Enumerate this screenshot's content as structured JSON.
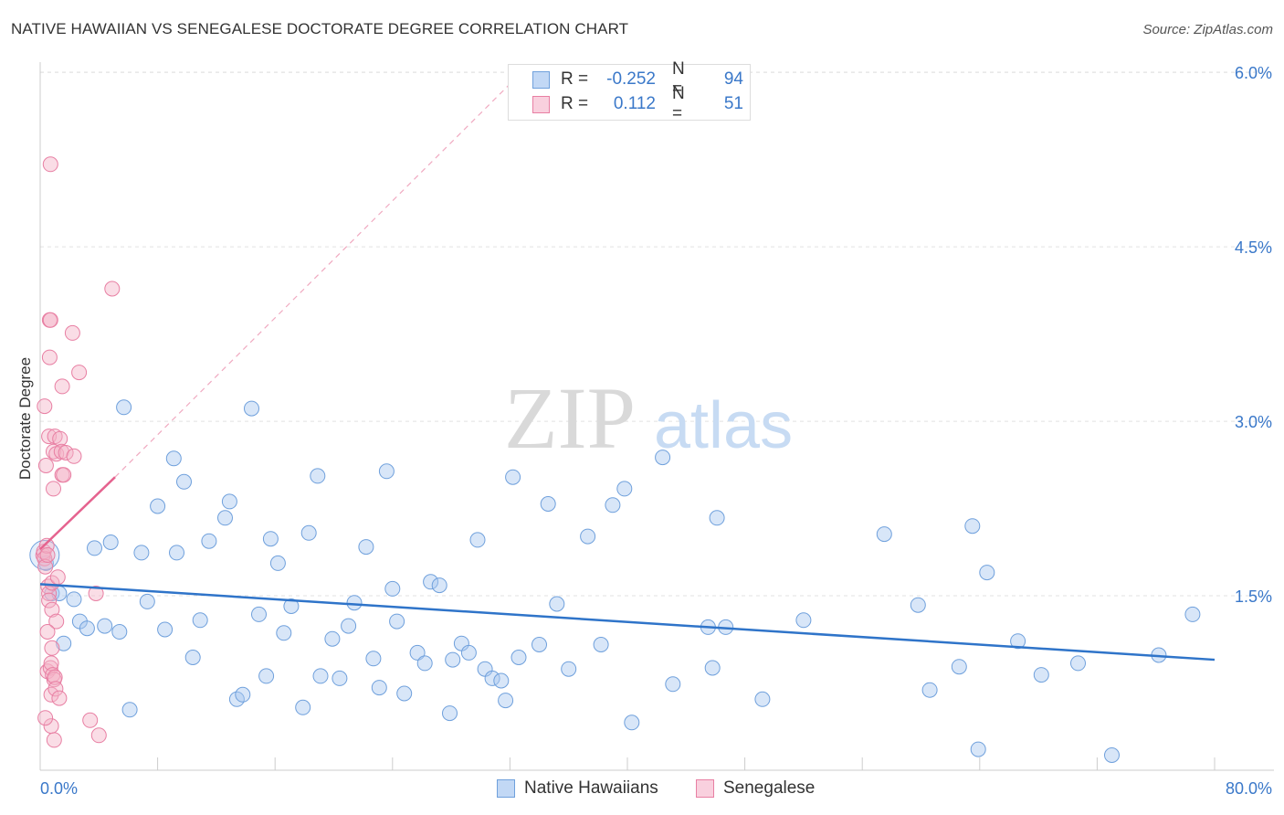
{
  "header": {
    "title": "NATIVE HAWAIIAN VS SENEGALESE DOCTORATE DEGREE CORRELATION CHART",
    "source": "Source: ZipAtlas.com"
  },
  "watermark": {
    "zip": "ZIP",
    "atlas": "atlas"
  },
  "legend": {
    "rows": [
      {
        "r_label": "R =",
        "r_value": "-0.252",
        "n_label": "N =",
        "n_value": "94",
        "color": "#a8c8f0"
      },
      {
        "r_label": "R =",
        "r_value": "0.112",
        "n_label": "N =",
        "n_value": "51",
        "color": "#f5b3c8"
      }
    ]
  },
  "bottom_legend": {
    "items": [
      {
        "label": "Native Hawaiians",
        "color": "#a8c8f0"
      },
      {
        "label": "Senegalese",
        "color": "#f5b3c8"
      }
    ]
  },
  "chart_data": {
    "type": "scatter",
    "title": "NATIVE HAWAIIAN VS SENEGALESE DOCTORATE DEGREE CORRELATION CHART",
    "xlabel": "",
    "ylabel": "Doctorate Degree",
    "xlim": [
      0,
      80
    ],
    "ylim": [
      0,
      6.3
    ],
    "x_tick_labels": [
      "0.0%",
      "80.0%"
    ],
    "y_ticks": [
      1.5,
      3.0,
      4.5,
      6.0
    ],
    "y_tick_labels": [
      "1.5%",
      "3.0%",
      "4.5%",
      "6.0%"
    ],
    "grid": true,
    "series": [
      {
        "name": "Native Hawaiians",
        "color": "#a8c8f0",
        "stroke": "#6fa0dc",
        "trend": {
          "x": [
            0,
            80
          ],
          "y": [
            1.6,
            0.95
          ],
          "color": "#2f74c9"
        },
        "points": [
          [
            0.4,
            1.78
          ],
          [
            0.8,
            1.52
          ],
          [
            1.3,
            1.52
          ],
          [
            1.6,
            1.09
          ],
          [
            2.3,
            1.47
          ],
          [
            2.7,
            1.28
          ],
          [
            3.2,
            1.22
          ],
          [
            3.7,
            1.91
          ],
          [
            4.4,
            1.24
          ],
          [
            4.8,
            1.96
          ],
          [
            5.4,
            1.19
          ],
          [
            5.7,
            3.12
          ],
          [
            6.1,
            0.52
          ],
          [
            6.9,
            1.87
          ],
          [
            7.3,
            1.45
          ],
          [
            8.0,
            2.27
          ],
          [
            8.5,
            1.21
          ],
          [
            9.1,
            2.68
          ],
          [
            9.3,
            1.87
          ],
          [
            9.8,
            2.48
          ],
          [
            10.4,
            0.97
          ],
          [
            10.9,
            1.29
          ],
          [
            11.5,
            1.97
          ],
          [
            12.6,
            2.17
          ],
          [
            12.9,
            2.31
          ],
          [
            13.4,
            0.61
          ],
          [
            13.8,
            0.65
          ],
          [
            14.4,
            3.11
          ],
          [
            14.9,
            1.34
          ],
          [
            15.4,
            0.81
          ],
          [
            15.7,
            1.99
          ],
          [
            16.2,
            1.78
          ],
          [
            16.6,
            1.18
          ],
          [
            17.1,
            1.41
          ],
          [
            17.9,
            0.54
          ],
          [
            18.3,
            2.04
          ],
          [
            18.9,
            2.53
          ],
          [
            19.1,
            0.81
          ],
          [
            19.9,
            1.13
          ],
          [
            20.4,
            0.79
          ],
          [
            21.0,
            1.24
          ],
          [
            21.4,
            1.44
          ],
          [
            22.2,
            1.92
          ],
          [
            22.7,
            0.96
          ],
          [
            23.1,
            0.71
          ],
          [
            23.6,
            2.57
          ],
          [
            24.0,
            1.56
          ],
          [
            24.3,
            1.28
          ],
          [
            24.8,
            0.66
          ],
          [
            25.7,
            1.01
          ],
          [
            26.2,
            0.92
          ],
          [
            26.6,
            1.62
          ],
          [
            27.2,
            1.59
          ],
          [
            27.9,
            0.49
          ],
          [
            28.1,
            0.95
          ],
          [
            28.7,
            1.09
          ],
          [
            29.2,
            1.01
          ],
          [
            29.8,
            1.98
          ],
          [
            30.3,
            0.87
          ],
          [
            30.8,
            0.79
          ],
          [
            31.4,
            0.77
          ],
          [
            31.7,
            0.6
          ],
          [
            32.2,
            2.52
          ],
          [
            32.6,
            0.97
          ],
          [
            34.0,
            1.08
          ],
          [
            34.6,
            2.29
          ],
          [
            35.2,
            1.43
          ],
          [
            36.0,
            0.87
          ],
          [
            37.3,
            2.01
          ],
          [
            38.2,
            1.08
          ],
          [
            39.0,
            2.28
          ],
          [
            39.8,
            2.42
          ],
          [
            40.3,
            0.41
          ],
          [
            42.4,
            2.69
          ],
          [
            43.1,
            0.74
          ],
          [
            45.5,
            1.23
          ],
          [
            45.8,
            0.88
          ],
          [
            46.1,
            2.17
          ],
          [
            46.7,
            1.23
          ],
          [
            49.2,
            0.61
          ],
          [
            52.0,
            1.29
          ],
          [
            57.5,
            2.03
          ],
          [
            59.8,
            1.42
          ],
          [
            60.6,
            0.69
          ],
          [
            62.6,
            0.89
          ],
          [
            63.5,
            2.1
          ],
          [
            63.9,
            0.18
          ],
          [
            64.5,
            1.7
          ],
          [
            66.6,
            1.11
          ],
          [
            68.2,
            0.82
          ],
          [
            70.7,
            0.92
          ],
          [
            73.0,
            0.13
          ],
          [
            76.2,
            0.99
          ],
          [
            78.5,
            1.34
          ]
        ]
      },
      {
        "name": "Senegalese",
        "color": "#f5b3c8",
        "stroke": "#e87fa3",
        "trend": {
          "x": [
            0,
            5.1
          ],
          "y": [
            1.9,
            2.52
          ],
          "color": "#e5638f"
        },
        "trend_extension": {
          "x": [
            5.1,
            32
          ],
          "y": [
            2.52,
            5.9
          ]
        },
        "points": [
          [
            0.2,
            1.85
          ],
          [
            0.25,
            1.88
          ],
          [
            0.3,
            1.82
          ],
          [
            0.3,
            3.13
          ],
          [
            0.35,
            1.75
          ],
          [
            0.4,
            2.62
          ],
          [
            0.45,
            1.93
          ],
          [
            0.5,
            1.85
          ],
          [
            0.5,
            0.85
          ],
          [
            0.55,
            1.58
          ],
          [
            0.6,
            1.52
          ],
          [
            0.6,
            1.46
          ],
          [
            0.6,
            2.87
          ],
          [
            0.65,
            3.87
          ],
          [
            0.65,
            3.55
          ],
          [
            0.7,
            5.21
          ],
          [
            0.7,
            3.87
          ],
          [
            0.7,
            0.88
          ],
          [
            0.75,
            0.92
          ],
          [
            0.75,
            0.65
          ],
          [
            0.75,
            0.38
          ],
          [
            0.8,
            1.61
          ],
          [
            0.8,
            1.38
          ],
          [
            0.8,
            1.05
          ],
          [
            0.85,
            0.82
          ],
          [
            0.9,
            2.42
          ],
          [
            0.9,
            2.74
          ],
          [
            0.95,
            0.78
          ],
          [
            1.0,
            2.87
          ],
          [
            1.0,
            0.8
          ],
          [
            1.05,
            0.7
          ],
          [
            1.1,
            1.28
          ],
          [
            1.1,
            2.72
          ],
          [
            1.2,
            1.66
          ],
          [
            1.3,
            0.62
          ],
          [
            1.35,
            2.85
          ],
          [
            1.45,
            2.74
          ],
          [
            1.5,
            2.54
          ],
          [
            1.5,
            3.3
          ],
          [
            1.6,
            2.54
          ],
          [
            1.75,
            2.73
          ],
          [
            2.2,
            3.76
          ],
          [
            2.3,
            2.7
          ],
          [
            2.65,
            3.42
          ],
          [
            3.4,
            0.43
          ],
          [
            3.8,
            1.52
          ],
          [
            4.0,
            0.3
          ],
          [
            4.9,
            4.14
          ],
          [
            0.35,
            0.45
          ],
          [
            0.5,
            1.19
          ],
          [
            0.95,
            0.26
          ]
        ]
      }
    ]
  }
}
